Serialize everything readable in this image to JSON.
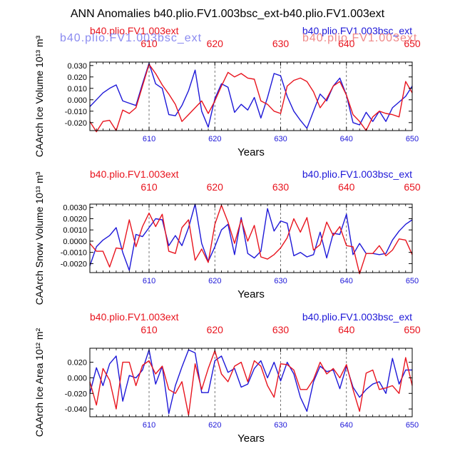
{
  "figure_title": "ANN Anomalies b40.plio.FV1.003bsc_ext-b40.plio.FV1.003ext",
  "colors": {
    "red": "#e8141e",
    "blue": "#1e18d8",
    "ghost_blue": "#8a8af0",
    "ghost_red": "#f08888",
    "grid": "#555555"
  },
  "chart_data": [
    {
      "type": "line",
      "title_left": "b40.plio.FV1.003ext",
      "title_right": "b40.plio.FV1.003bsc_ext",
      "ylabel": "CAArch Ice Volume 10¹³ m³",
      "xlabel": "Years",
      "xlim": [
        601,
        650
      ],
      "ylim": [
        -0.027,
        0.033
      ],
      "yticks": [
        -0.02,
        -0.01,
        0.0,
        0.01,
        0.02,
        0.03
      ],
      "yticklabels": [
        "-0.020",
        "-0.010",
        "0.000",
        "0.010",
        "0.020",
        "0.030"
      ],
      "xticks": [
        610,
        620,
        630,
        640,
        650
      ],
      "xticklabels": [
        "610",
        "620",
        "630",
        "640",
        "650"
      ],
      "vlines": [
        610,
        620,
        630,
        640
      ],
      "series": [
        {
          "name": "b40.plio.FV1.003bsc_ext",
          "color": "blue",
          "x": [
            601,
            602,
            603,
            604,
            605,
            606,
            607,
            608,
            609,
            610,
            611,
            612,
            613,
            614,
            615,
            616,
            617,
            618,
            619,
            620,
            621,
            622,
            623,
            624,
            625,
            626,
            627,
            628,
            629,
            630,
            631,
            632,
            633,
            634,
            635,
            636,
            637,
            638,
            639,
            640,
            641,
            642,
            643,
            644,
            645,
            646,
            647,
            648,
            649,
            650
          ],
          "y": [
            -0.006,
            0.0,
            0.006,
            0.01,
            0.013,
            -0.001,
            -0.003,
            -0.005,
            0.014,
            0.032,
            0.014,
            0.01,
            -0.013,
            -0.014,
            -0.005,
            0.008,
            0.026,
            -0.01,
            -0.024,
            0.001,
            0.014,
            0.011,
            -0.011,
            -0.004,
            -0.009,
            0.002,
            -0.016,
            0.002,
            0.023,
            0.021,
            0.003,
            -0.01,
            -0.018,
            -0.025,
            -0.01,
            0.005,
            -0.001,
            0.012,
            0.019,
            0.004,
            -0.02,
            -0.022,
            -0.011,
            -0.019,
            -0.01,
            -0.019,
            -0.007,
            -0.002,
            0.003,
            0.012
          ]
        },
        {
          "name": "b40.plio.FV1.003ext",
          "color": "red",
          "x": [
            601,
            602,
            603,
            604,
            605,
            606,
            607,
            608,
            609,
            610,
            611,
            612,
            613,
            614,
            615,
            616,
            617,
            618,
            619,
            620,
            621,
            622,
            623,
            624,
            625,
            626,
            627,
            628,
            629,
            630,
            631,
            632,
            633,
            634,
            635,
            636,
            637,
            638,
            639,
            640,
            641,
            642,
            643,
            644,
            645,
            646,
            647,
            648,
            649,
            650
          ],
          "y": [
            -0.019,
            -0.028,
            -0.019,
            -0.018,
            -0.027,
            -0.009,
            -0.012,
            -0.007,
            0.012,
            0.031,
            0.023,
            0.013,
            0.005,
            -0.004,
            -0.019,
            -0.013,
            -0.007,
            -0.001,
            -0.012,
            -0.001,
            0.012,
            0.024,
            0.02,
            0.023,
            0.019,
            0.018,
            -0.001,
            -0.004,
            -0.01,
            -0.012,
            0.012,
            0.017,
            0.019,
            0.016,
            0.007,
            -0.007,
            0.001,
            0.012,
            0.016,
            0.004,
            -0.013,
            -0.019,
            -0.027,
            -0.015,
            -0.01,
            -0.012,
            -0.013,
            -0.015,
            0.016,
            0.006
          ]
        }
      ]
    },
    {
      "type": "line",
      "title_left": "b40.plio.FV1.003ext",
      "title_right": "b40.plio.FV1.003bsc_ext",
      "ylabel": "CAArch Snow Volume 10¹³ m³",
      "xlabel": "Years",
      "xlim": [
        601,
        650
      ],
      "ylim": [
        -0.0028,
        0.0033
      ],
      "yticks": [
        -0.002,
        -0.001,
        0.0,
        0.001,
        0.002,
        0.003
      ],
      "yticklabels": [
        "-0.0020",
        "-0.0010",
        "0.0000",
        "0.0010",
        "0.0020",
        "0.0030"
      ],
      "xticks": [
        610,
        620,
        630,
        640,
        650
      ],
      "xticklabels": [
        "610",
        "620",
        "630",
        "640",
        "650"
      ],
      "vlines": [
        610,
        620,
        630,
        640
      ],
      "series": [
        {
          "name": "b40.plio.FV1.003bsc_ext",
          "color": "blue",
          "x": [
            601,
            602,
            603,
            604,
            605,
            606,
            607,
            608,
            609,
            610,
            611,
            612,
            613,
            614,
            615,
            616,
            617,
            618,
            619,
            620,
            621,
            622,
            623,
            624,
            625,
            626,
            627,
            628,
            629,
            630,
            631,
            632,
            633,
            634,
            635,
            636,
            637,
            638,
            639,
            640,
            641,
            642,
            643,
            644,
            645,
            646,
            647,
            648,
            649,
            650
          ],
          "y": [
            -0.0022,
            -0.0005,
            0.0001,
            0.0005,
            0.0012,
            -0.001,
            -0.0026,
            0.0006,
            0.0004,
            0.0012,
            0.002,
            0.0019,
            -0.0004,
            0.0005,
            -0.0004,
            0.0012,
            0.0033,
            -0.0002,
            -0.0018,
            -0.0005,
            0.001,
            0.0015,
            -0.0012,
            0.0021,
            -0.0011,
            -0.0015,
            -0.0009,
            0.0029,
            0.0009,
            0.0018,
            0.0016,
            -0.0013,
            -0.001,
            -0.0014,
            -0.0012,
            0.0008,
            -0.0015,
            0.0007,
            0.0006,
            0.0024,
            -0.0012,
            -0.0002,
            -0.0011,
            -0.0011,
            -0.0012,
            -0.0011,
            0.0001,
            0.0009,
            0.0015,
            0.0019
          ]
        },
        {
          "name": "b40.plio.FV1.003ext",
          "color": "red",
          "x": [
            601,
            602,
            603,
            604,
            605,
            606,
            607,
            608,
            609,
            610,
            611,
            612,
            613,
            614,
            615,
            616,
            617,
            618,
            619,
            620,
            621,
            622,
            623,
            624,
            625,
            626,
            627,
            628,
            629,
            630,
            631,
            632,
            633,
            634,
            635,
            636,
            637,
            638,
            639,
            640,
            641,
            642,
            643,
            644,
            645,
            646,
            647,
            648,
            649,
            650
          ],
          "y": [
            -0.0002,
            -0.0009,
            -0.0009,
            -0.0023,
            -0.0006,
            -0.0007,
            0.0019,
            -0.0005,
            0.0013,
            0.0025,
            0.0013,
            0.0024,
            -0.0009,
            -0.0011,
            0.0012,
            0.0019,
            -0.0017,
            -0.0007,
            -0.0019,
            0.0015,
            0.0032,
            0.0017,
            -0.0002,
            0.0019,
            0.0,
            0.0014,
            -0.0014,
            -0.0016,
            -0.0012,
            -0.0006,
            0.0003,
            0.002,
            0.0008,
            0.0021,
            -0.0008,
            -0.0003,
            0.0017,
            0.0005,
            0.0013,
            -0.0004,
            -0.0005,
            -0.0029,
            -0.0011,
            -0.0011,
            -0.0004,
            -0.0013,
            -0.0008,
            0.0002,
            0.0001,
            -0.0012
          ]
        }
      ]
    },
    {
      "type": "line",
      "title_left": "b40.plio.FV1.003ext",
      "title_right": "b40.plio.FV1.003bsc_ext",
      "ylabel": "CAArch Ice Area 10¹² m²",
      "xlabel": "Years",
      "xlim": [
        601,
        650
      ],
      "ylim": [
        -0.05,
        0.038
      ],
      "yticks": [
        -0.04,
        -0.02,
        0.0,
        0.02
      ],
      "yticklabels": [
        "-0.040",
        "-0.020",
        "0.000",
        "0.020"
      ],
      "xticks": [
        610,
        620,
        630,
        640,
        650
      ],
      "xticklabels": [
        "610",
        "620",
        "630",
        "640",
        "650"
      ],
      "vlines": [
        610,
        620,
        630,
        640
      ],
      "series": [
        {
          "name": "b40.plio.FV1.003bsc_ext",
          "color": "blue",
          "x": [
            601,
            602,
            603,
            604,
            605,
            606,
            607,
            608,
            609,
            610,
            611,
            612,
            613,
            614,
            615,
            616,
            617,
            618,
            619,
            620,
            621,
            622,
            623,
            624,
            625,
            626,
            627,
            628,
            629,
            630,
            631,
            632,
            633,
            634,
            635,
            636,
            637,
            638,
            639,
            640,
            641,
            642,
            643,
            644,
            645,
            646,
            647,
            648,
            649,
            650
          ],
          "y": [
            -0.02,
            0.013,
            -0.01,
            0.018,
            0.028,
            -0.03,
            0.003,
            0.0,
            0.01,
            0.036,
            -0.008,
            0.015,
            -0.046,
            -0.01,
            0.014,
            0.036,
            0.032,
            -0.019,
            -0.019,
            0.022,
            0.028,
            0.007,
            0.012,
            -0.012,
            -0.008,
            0.012,
            0.022,
            0.0,
            0.02,
            -0.004,
            0.02,
            0.005,
            -0.025,
            -0.043,
            -0.005,
            0.015,
            0.008,
            0.01,
            -0.014,
            0.015,
            -0.012,
            -0.025,
            -0.015,
            -0.008,
            -0.005,
            -0.02,
            0.025,
            -0.008,
            0.01,
            0.01
          ]
        },
        {
          "name": "b40.plio.FV1.003ext",
          "color": "red",
          "x": [
            601,
            602,
            603,
            604,
            605,
            606,
            607,
            608,
            609,
            610,
            611,
            612,
            613,
            614,
            615,
            616,
            617,
            618,
            619,
            620,
            621,
            622,
            623,
            624,
            625,
            626,
            627,
            628,
            629,
            630,
            631,
            632,
            633,
            634,
            635,
            636,
            637,
            638,
            639,
            640,
            641,
            642,
            643,
            644,
            645,
            646,
            647,
            648,
            649,
            650
          ],
          "y": [
            -0.005,
            -0.035,
            0.012,
            -0.003,
            -0.04,
            0.02,
            0.02,
            -0.01,
            0.016,
            0.022,
            0.005,
            0.015,
            -0.015,
            -0.02,
            -0.005,
            -0.048,
            0.018,
            -0.015,
            0.012,
            0.035,
            0.005,
            -0.005,
            0.015,
            0.02,
            -0.005,
            0.022,
            0.015,
            -0.01,
            -0.025,
            0.018,
            0.017,
            0.01,
            -0.015,
            -0.015,
            -0.002,
            0.02,
            0.005,
            0.012,
            0.0,
            0.017,
            -0.015,
            -0.043,
            0.006,
            0.01,
            -0.015,
            -0.013,
            -0.01,
            -0.02,
            0.026,
            -0.01
          ]
        }
      ]
    }
  ]
}
